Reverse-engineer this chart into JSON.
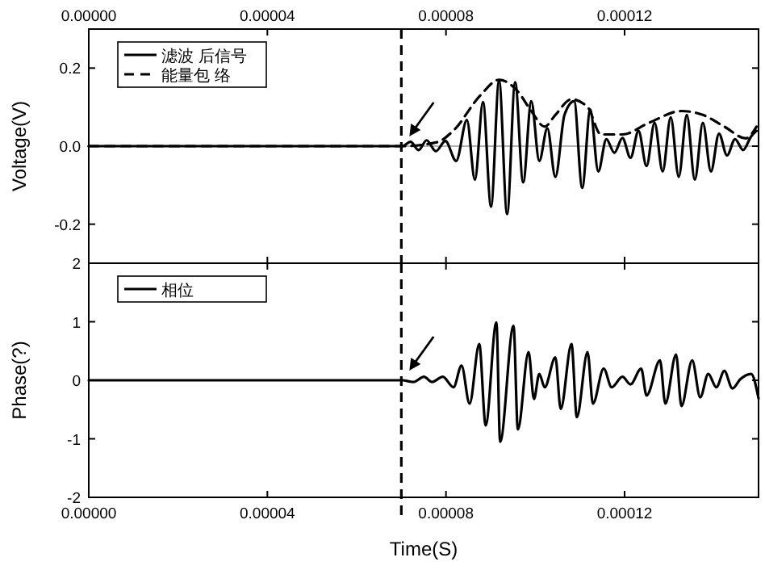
{
  "chart_data": [
    {
      "type": "line",
      "ylabel": "Voltage(V)",
      "legend": "top left",
      "xlim": [
        0,
        0.00015
      ],
      "xticks": [
        {
          "value": 0,
          "label": "0.00000"
        },
        {
          "value": 4e-05,
          "label": "0.00004"
        },
        {
          "value": 8e-05,
          "label": "0.00008"
        },
        {
          "value": 0.00012,
          "label": "0.00012"
        }
      ],
      "ylim": [
        -0.3,
        0.3
      ],
      "yticks": [
        {
          "value": 0.2,
          "label": "0.2"
        },
        {
          "value": 0,
          "label": "0.0"
        },
        {
          "value": -0.2,
          "label": "-0.2"
        }
      ],
      "ref_lines": [
        {
          "axis": "x",
          "value": 7e-05,
          "line_style": "dashed",
          "color": "#000000"
        },
        {
          "axis": "y",
          "value": 0,
          "color": "#999999"
        }
      ],
      "series": [
        {
          "name": "滤波 后信号",
          "color": "#000000",
          "line_style": "solid",
          "x": [
            0,
            7e-05,
            7.027e-05,
            7.207e-05,
            7.387e-05,
            7.567e-05,
            7.772e-05,
            7.988e-05,
            8.228e-05,
            8.468e-05,
            8.648e-05,
            8.829e-05,
            9.009e-05,
            9.189e-05,
            9.369e-05,
            9.549e-05,
            9.729e-05,
            9.91e-05,
            0.0001009,
            0.0001027,
            0.0001045,
            0.00010654,
            0.0001087,
            0.00011051,
            0.00011231,
            0.00011411,
            0.00011591,
            0.00011771,
            0.00011952,
            0.00012132,
            0.00012312,
            0.00012492,
            0.00012672,
            0.00012852,
            0.00013033,
            0.00013213,
            0.00013393,
            0.00013573,
            0.00013753,
            0.00013934,
            0.00014114,
            0.00014294,
            0.00014474,
            0.00014654,
            0.00014834,
            0.00014954
          ],
          "values": [
            0,
            0,
            0,
            0.011,
            -0.01,
            0.015,
            -0.013,
            0.013,
            -0.038,
            0.067,
            -0.086,
            0.113,
            -0.155,
            0.168,
            -0.174,
            0.164,
            -0.093,
            0.115,
            -0.038,
            0.046,
            -0.079,
            0.08,
            0.115,
            -0.107,
            0.094,
            -0.065,
            0.018,
            -0.017,
            0.021,
            -0.03,
            0.039,
            -0.051,
            0.06,
            -0.065,
            0.074,
            -0.079,
            0.08,
            -0.086,
            0.06,
            -0.065,
            0.032,
            -0.024,
            0.018,
            -0.01,
            0.025,
            0.039
          ]
        },
        {
          "name": "能量包 络",
          "color": "#000000",
          "line_style": "dashed",
          "x": [
            0,
            7e-05,
            7.8e-05,
            8.168e-05,
            8.769e-05,
            9.189e-05,
            9.609e-05,
            9.91e-05,
            0.0001021,
            0.0001045,
            0.0001081,
            0.00011171,
            0.00011471,
            0.00011952,
            0.00012552,
            0.00013273,
            0.00013753,
            0.00014234,
            0.00014714,
            0.00014954
          ],
          "values": [
            0,
            0,
            0.01,
            0.04,
            0.13,
            0.17,
            0.14,
            0.09,
            0.05,
            0.08,
            0.12,
            0.1,
            0.03,
            0.03,
            0.06,
            0.09,
            0.08,
            0.05,
            0.02,
            0.05
          ]
        }
      ]
    },
    {
      "type": "line",
      "xlabel": "Time(S)",
      "ylabel": "Phase(?)",
      "legend": "top left",
      "xlim": [
        0,
        0.00015
      ],
      "xticks": [
        {
          "value": 0,
          "label": "0.00000"
        },
        {
          "value": 4e-05,
          "label": "0.00004"
        },
        {
          "value": 8e-05,
          "label": "0.00008"
        },
        {
          "value": 0.00012,
          "label": "0.00012"
        }
      ],
      "ylim": [
        -2,
        2
      ],
      "yticks": [
        2,
        1,
        0,
        -1,
        -2
      ],
      "ref_lines": [
        {
          "axis": "x",
          "value": 7e-05,
          "line_style": "dashed",
          "color": "#000000"
        }
      ],
      "series": [
        {
          "name": "相位",
          "color": "#000000",
          "line_style": "solid",
          "x": [
            0,
            7e-05,
            7.027e-05,
            7.267e-05,
            7.507e-05,
            7.687e-05,
            7.928e-05,
            8.168e-05,
            8.348e-05,
            8.529e-05,
            8.745e-05,
            8.889e-05,
            9.129e-05,
            9.213e-05,
            9.513e-05,
            9.61e-05,
            9.85e-05,
            9.97e-05,
            0.0001009,
            0.0001021,
            0.0001045,
            0.0001057,
            0.00010811,
            0.00010931,
            0.00011171,
            0.00011291,
            0.00011531,
            0.00011712,
            0.00011952,
            0.00012132,
            0.00012372,
            0.00012492,
            0.00012793,
            0.00012913,
            0.00013153,
            0.00013273,
            0.00013514,
            0.00013694,
            0.00013874,
            0.00014054,
            0.00014234,
            0.00014414,
            0.00014594,
            0.00014834,
            0.00015
          ],
          "values": [
            0,
            0,
            0,
            -0.03,
            0.06,
            -0.03,
            0.06,
            -0.12,
            0.25,
            -0.4,
            0.62,
            -0.77,
            0.99,
            -1.05,
            0.93,
            -0.84,
            0.48,
            -0.32,
            0.11,
            -0.12,
            0.39,
            -0.49,
            0.62,
            -0.63,
            0.48,
            -0.4,
            0.2,
            -0.12,
            0.06,
            -0.07,
            0.2,
            -0.26,
            0.34,
            -0.4,
            0.44,
            -0.44,
            0.34,
            -0.29,
            0.11,
            -0.12,
            0.16,
            -0.14,
            0.02,
            0.11,
            -0.31
          ]
        }
      ]
    }
  ]
}
